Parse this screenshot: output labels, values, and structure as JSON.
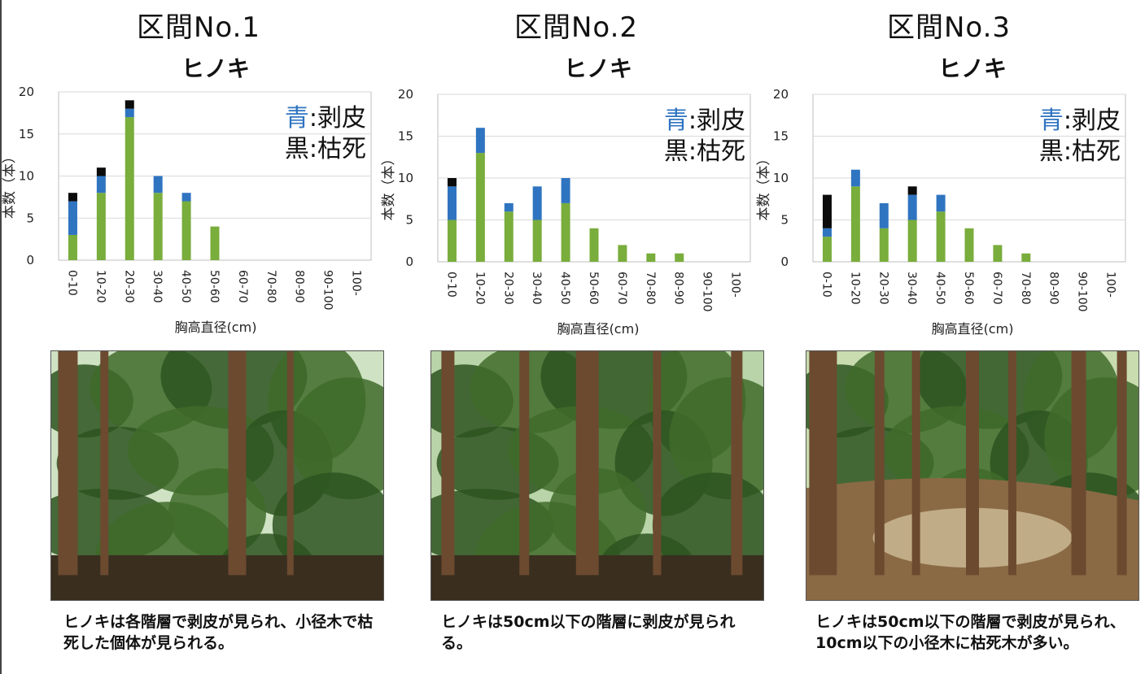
{
  "colors": {
    "green": "#79ad3c",
    "blue": "#2f74c0",
    "black": "#0b0b0b",
    "grid": "#d9d9d9",
    "axis": "#bfbfbf"
  },
  "panels": [
    {
      "section_title": "区間No.1",
      "caption": "ヒノキは各階層で剥皮が見られ、小径木で枯死した個体が見られる。",
      "photo": {
        "description_icon": "forest-photo",
        "sky": "#cfe3c4"
      }
    },
    {
      "section_title": "区間No.2",
      "caption": "ヒノキは50cm以下の階層に剥皮が見られる。",
      "photo": {
        "description_icon": "forest-photo",
        "sky": "#b8d4a8"
      }
    },
    {
      "section_title": "区間No.3",
      "caption": "ヒノキは50cm以下の階層で剥皮が見られ、10cm以下の小径木に枯死木が多い。",
      "photo": {
        "description_icon": "forest-photo",
        "sky": "#c8dcb0"
      }
    }
  ],
  "chart_data": [
    {
      "type": "bar",
      "stacked": true,
      "title": "ヒノキ",
      "xlabel": "胸高直径(cm)",
      "ylabel": "本数（本）",
      "ylim": [
        0,
        20
      ],
      "yticks": [
        0,
        5,
        10,
        15,
        20
      ],
      "grid": true,
      "legend_text": [
        {
          "color_label": "青",
          "rest": ":剥皮"
        },
        {
          "color_label": "黒",
          "rest": ":枯死"
        }
      ],
      "legend_position": "top-right",
      "categories": [
        "0-10",
        "10-20",
        "20-30",
        "30-40",
        "40-50",
        "50-60",
        "60-70",
        "70-80",
        "80-90",
        "90-100",
        "100-"
      ],
      "series": [
        {
          "color": "#79ad3c",
          "values": [
            3,
            8,
            17,
            8,
            7,
            4,
            0,
            0,
            0,
            0,
            0
          ]
        },
        {
          "color": "#2f74c0",
          "values": [
            4,
            2,
            1,
            2,
            1,
            0,
            0,
            0,
            0,
            0,
            0
          ]
        },
        {
          "color": "#0b0b0b",
          "values": [
            1,
            1,
            1,
            0,
            0,
            0,
            0,
            0,
            0,
            0,
            0
          ]
        }
      ]
    },
    {
      "type": "bar",
      "stacked": true,
      "title": "ヒノキ",
      "xlabel": "胸高直径(cm)",
      "ylabel": "本数（本）",
      "ylim": [
        0,
        20
      ],
      "yticks": [
        0,
        5,
        10,
        15,
        20
      ],
      "grid": true,
      "legend_text": [
        {
          "color_label": "青",
          "rest": ":剥皮"
        },
        {
          "color_label": "黒",
          "rest": ":枯死"
        }
      ],
      "legend_position": "top-right",
      "categories": [
        "0-10",
        "10-20",
        "20-30",
        "30-40",
        "40-50",
        "50-60",
        "60-70",
        "70-80",
        "80-90",
        "90-100",
        "100-"
      ],
      "series": [
        {
          "color": "#79ad3c",
          "values": [
            5,
            13,
            6,
            5,
            7,
            4,
            2,
            1,
            1,
            0,
            0
          ]
        },
        {
          "color": "#2f74c0",
          "values": [
            4,
            3,
            1,
            4,
            3,
            0,
            0,
            0,
            0,
            0,
            0
          ]
        },
        {
          "color": "#0b0b0b",
          "values": [
            1,
            0,
            0,
            0,
            0,
            0,
            0,
            0,
            0,
            0,
            0
          ]
        }
      ]
    },
    {
      "type": "bar",
      "stacked": true,
      "title": "ヒノキ",
      "xlabel": "胸高直径(cm)",
      "ylabel": "本数（本）",
      "ylim": [
        0,
        20
      ],
      "yticks": [
        0,
        5,
        10,
        15,
        20
      ],
      "grid": true,
      "legend_text": [
        {
          "color_label": "青",
          "rest": ":剥皮"
        },
        {
          "color_label": "黒",
          "rest": ":枯死"
        }
      ],
      "legend_position": "top-right",
      "categories": [
        "0-10",
        "10-20",
        "20-30",
        "30-40",
        "40-50",
        "50-60",
        "60-70",
        "70-80",
        "80-90",
        "90-100",
        "100-"
      ],
      "series": [
        {
          "color": "#79ad3c",
          "values": [
            3,
            9,
            4,
            5,
            6,
            4,
            2,
            1,
            0,
            0,
            0
          ]
        },
        {
          "color": "#2f74c0",
          "values": [
            1,
            2,
            3,
            3,
            2,
            0,
            0,
            0,
            0,
            0,
            0
          ]
        },
        {
          "color": "#0b0b0b",
          "values": [
            4,
            0,
            0,
            1,
            0,
            0,
            0,
            0,
            0,
            0,
            0
          ]
        }
      ]
    }
  ]
}
